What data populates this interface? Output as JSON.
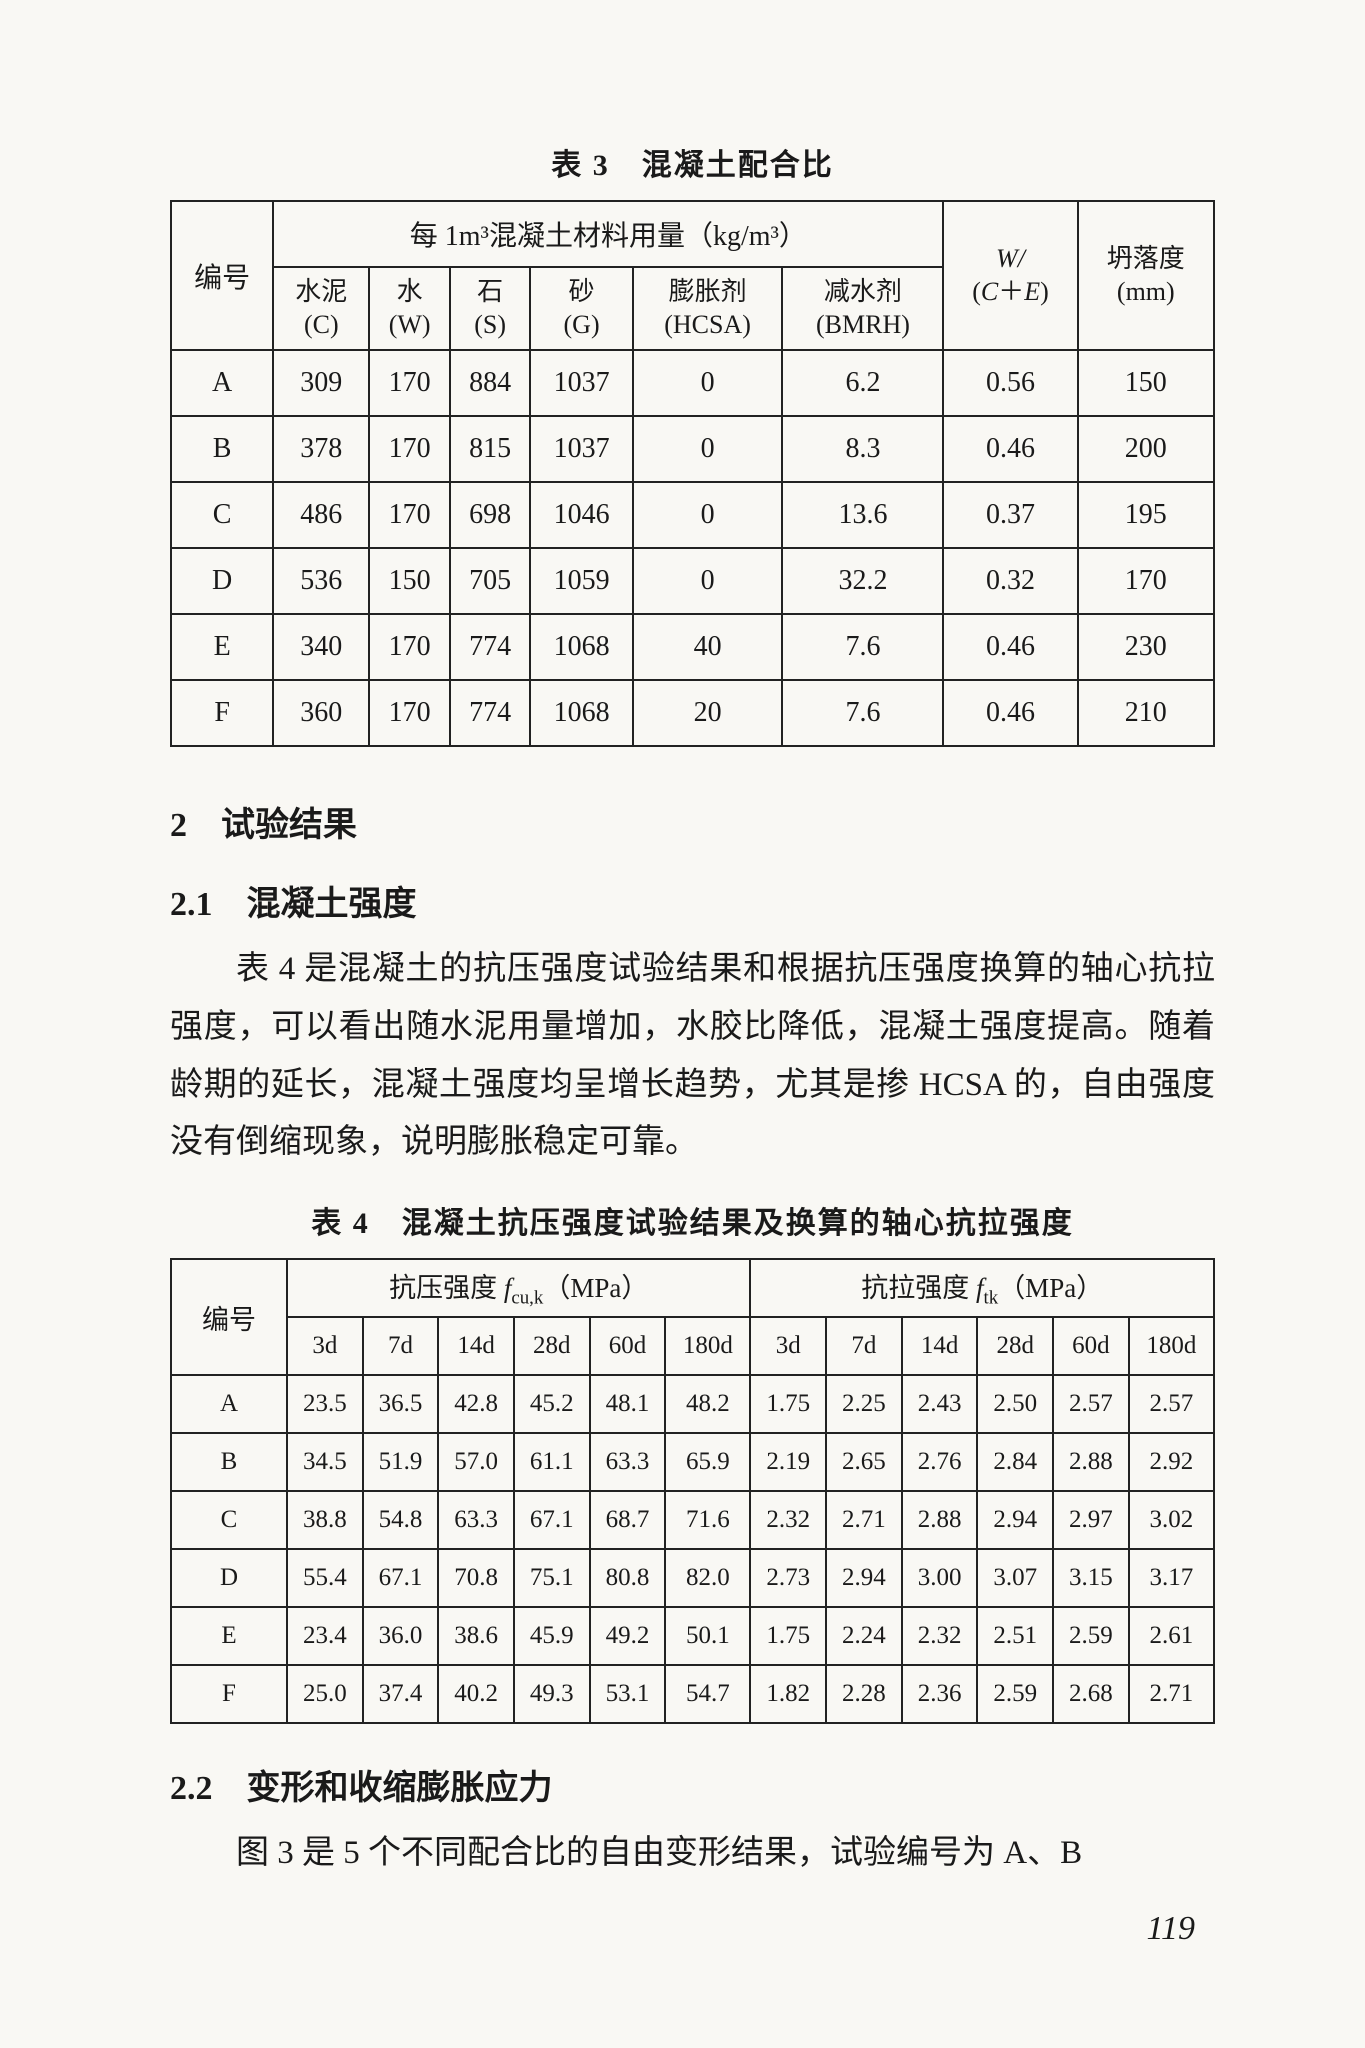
{
  "table3": {
    "title": "表 3　混凝土配合比",
    "header_group": "每 1m³混凝土材料用量（kg/m³）",
    "col_id": "编号",
    "cols": [
      {
        "top": "水泥",
        "bot": "(C)"
      },
      {
        "top": "水",
        "bot": "(W)"
      },
      {
        "top": "石",
        "bot": "(S)"
      },
      {
        "top": "砂",
        "bot": "(G)"
      },
      {
        "top": "膨胀剂",
        "bot": "(HCSA)"
      },
      {
        "top": "减水剂",
        "bot": "(BMRH)"
      }
    ],
    "col_wce_top": "W/",
    "col_wce_bot": "(C＋E)",
    "col_slump_top": "坍落度",
    "col_slump_bot": "(mm)",
    "rows": [
      [
        "A",
        "309",
        "170",
        "884",
        "1037",
        "0",
        "6.2",
        "0.56",
        "150"
      ],
      [
        "B",
        "378",
        "170",
        "815",
        "1037",
        "0",
        "8.3",
        "0.46",
        "200"
      ],
      [
        "C",
        "486",
        "170",
        "698",
        "1046",
        "0",
        "13.6",
        "0.37",
        "195"
      ],
      [
        "D",
        "536",
        "150",
        "705",
        "1059",
        "0",
        "32.2",
        "0.32",
        "170"
      ],
      [
        "E",
        "340",
        "170",
        "774",
        "1068",
        "40",
        "7.6",
        "0.46",
        "230"
      ],
      [
        "F",
        "360",
        "170",
        "774",
        "1068",
        "20",
        "7.6",
        "0.46",
        "210"
      ]
    ]
  },
  "section2": "2　试验结果",
  "sub21": "2.1　混凝土强度",
  "para21": "表 4 是混凝土的抗压强度试验结果和根据抗压强度换算的轴心抗拉强度，可以看出随水泥用量增加，水胶比降低，混凝土强度提高。随着龄期的延长，混凝土强度均呈增长趋势，尤其是掺 HCSA 的，自由强度没有倒缩现象，说明膨胀稳定可靠。",
  "table4": {
    "title": "表 4　混凝土抗压强度试验结果及换算的轴心抗拉强度",
    "col_id": "编号",
    "group_comp": "抗压强度 f_cu,k（MPa）",
    "group_tens": "抗拉强度 f_tk（MPa）",
    "ages": [
      "3d",
      "7d",
      "14d",
      "28d",
      "60d",
      "180d"
    ],
    "rows": [
      [
        "A",
        "23.5",
        "36.5",
        "42.8",
        "45.2",
        "48.1",
        "48.2",
        "1.75",
        "2.25",
        "2.43",
        "2.50",
        "2.57",
        "2.57"
      ],
      [
        "B",
        "34.5",
        "51.9",
        "57.0",
        "61.1",
        "63.3",
        "65.9",
        "2.19",
        "2.65",
        "2.76",
        "2.84",
        "2.88",
        "2.92"
      ],
      [
        "C",
        "38.8",
        "54.8",
        "63.3",
        "67.1",
        "68.7",
        "71.6",
        "2.32",
        "2.71",
        "2.88",
        "2.94",
        "2.97",
        "3.02"
      ],
      [
        "D",
        "55.4",
        "67.1",
        "70.8",
        "75.1",
        "80.8",
        "82.0",
        "2.73",
        "2.94",
        "3.00",
        "3.07",
        "3.15",
        "3.17"
      ],
      [
        "E",
        "23.4",
        "36.0",
        "38.6",
        "45.9",
        "49.2",
        "50.1",
        "1.75",
        "2.24",
        "2.32",
        "2.51",
        "2.59",
        "2.61"
      ],
      [
        "F",
        "25.0",
        "37.4",
        "40.2",
        "49.3",
        "53.1",
        "54.7",
        "1.82",
        "2.28",
        "2.36",
        "2.59",
        "2.68",
        "2.71"
      ]
    ]
  },
  "sub22": "2.2　变形和收缩膨胀应力",
  "para22": "图 3 是 5 个不同配合比的自由变形结果，试验编号为 A、B",
  "page_number": "119"
}
